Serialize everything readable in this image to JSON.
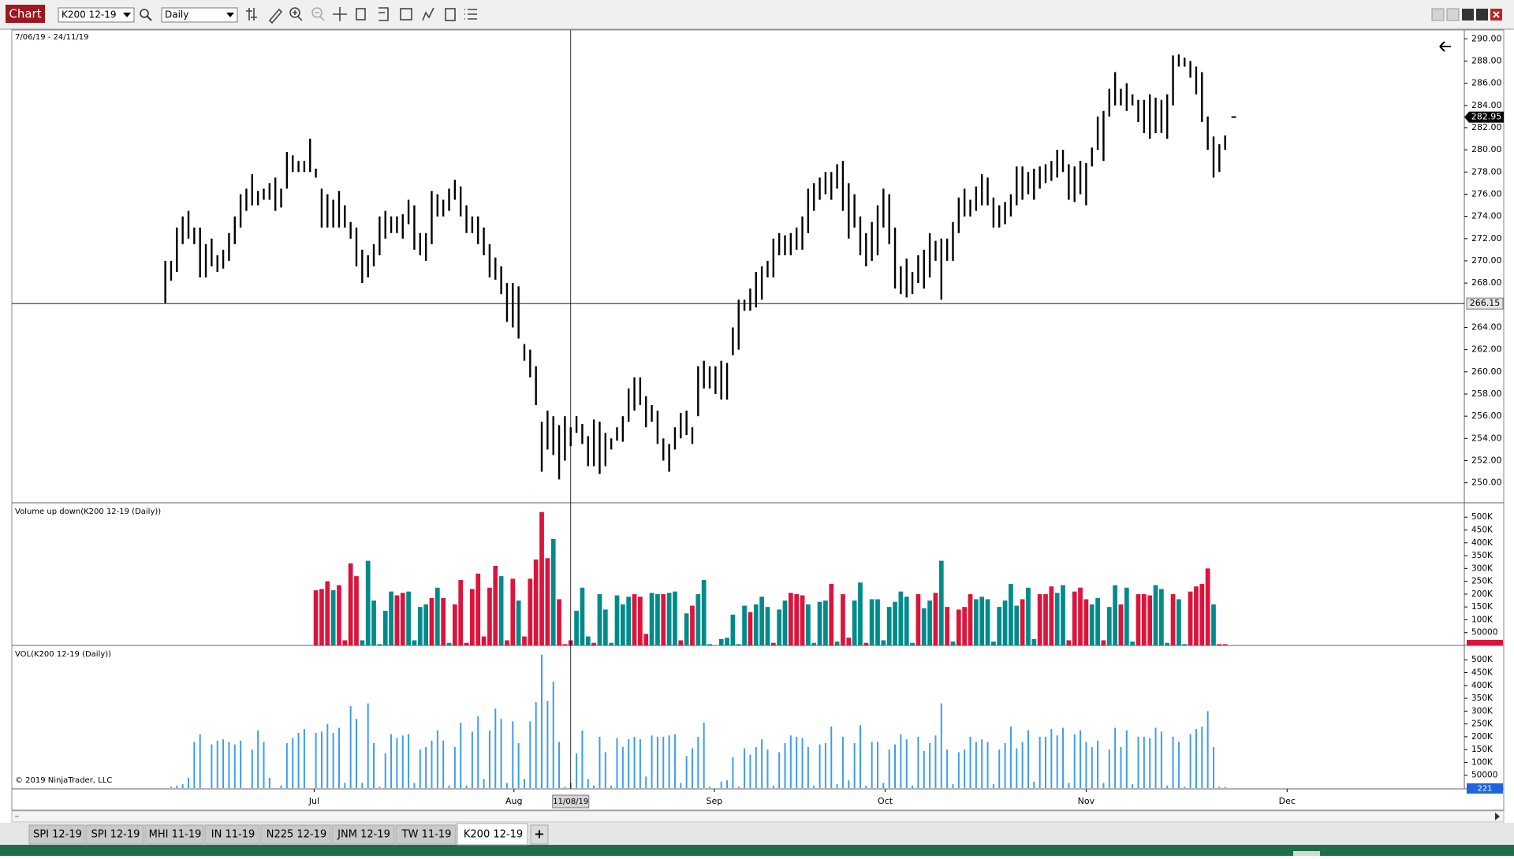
{
  "toolbar": {
    "label": "Chart",
    "instrument": "K200 12-19",
    "interval": "Daily"
  },
  "tabs": [
    "SPI 12-19",
    "SPI 12-19",
    "MHI 11-19",
    "IN 11-19",
    "N225 12-19",
    "JNM 12-19",
    "TW 11-19",
    "K200 12-19"
  ],
  "new_tab": "+",
  "chart_data": {
    "type": "ohlc",
    "range_label": "7/06/19 - 24/11/19",
    "copyright": "© 2019 NinjaTrader, LLC",
    "color": "#000000",
    "high": [
      270,
      270,
      273,
      274,
      274.5,
      273,
      273,
      271.5,
      272,
      270.5,
      271,
      272.5,
      274,
      276,
      276.5,
      277.8,
      276.3,
      276.5,
      277,
      277.5,
      276.5,
      279.8,
      279.5,
      279,
      279,
      281,
      278.3,
      276.5,
      276,
      275.5,
      276.3,
      275,
      273.5,
      273,
      271,
      270.5,
      271.5,
      274,
      274.5,
      274,
      274,
      274.2,
      275.5,
      275,
      272.5,
      272.5,
      276.3,
      276,
      275.5,
      276.5,
      277.3,
      276.7,
      275,
      274,
      274,
      273,
      271.5,
      270.3,
      269.5,
      268,
      268,
      267.7,
      262.5,
      262,
      260.5,
      255.5,
      256.5,
      256,
      255.2,
      256,
      255,
      256,
      255.3,
      254.2,
      255.7,
      255.5,
      254.5,
      254,
      255,
      256,
      258.5,
      259.5,
      259.5,
      257.8,
      257,
      256.5,
      254,
      253.5,
      255,
      256.3,
      256.5,
      255,
      260.5,
      261,
      260.5,
      260.5,
      261,
      260.8,
      264,
      266.5,
      266.5,
      267.5,
      269,
      269.5,
      270,
      272,
      272.5,
      272.3,
      272.5,
      273,
      274,
      276.5,
      277,
      277.5,
      278,
      278,
      278.7,
      279,
      277,
      276,
      274,
      272.5,
      273.5,
      275,
      276.5,
      276,
      273,
      269.5,
      270.2,
      269,
      270.5,
      271,
      272.5,
      271.8,
      272,
      272,
      273.5,
      275.7,
      276.5,
      275.5,
      276.7,
      277.8,
      277.5,
      275.7,
      275,
      275.3,
      276,
      278.5,
      278.5,
      278,
      278.3,
      278.5,
      278.7,
      279,
      280,
      280,
      278.7,
      278.5,
      279,
      278.8,
      280.2,
      283,
      283.5,
      285.5,
      287,
      285.5,
      286,
      285,
      284.5,
      284.5,
      285,
      284.7,
      284.5,
      285,
      288.5,
      288.6,
      288.3,
      288,
      287.5,
      287,
      283,
      281.2,
      280.5,
      281.3
    ],
    "low": [
      266.2,
      268.2,
      269,
      271.5,
      272,
      271.5,
      268.5,
      268.5,
      269.5,
      269,
      269.3,
      270,
      271.5,
      273,
      274.5,
      275,
      275,
      275.5,
      275.5,
      274.5,
      274.8,
      276.5,
      278,
      278,
      278,
      278,
      277.5,
      273,
      273,
      273,
      273,
      273,
      272,
      269.5,
      268,
      268.5,
      269.5,
      270.5,
      272,
      272.5,
      272.5,
      272,
      273.3,
      271,
      270.5,
      270,
      271.5,
      274,
      274,
      274.5,
      275.5,
      274,
      272.5,
      272.5,
      271.5,
      270.5,
      268.5,
      268.3,
      267,
      264.5,
      264,
      263,
      261,
      259.5,
      257,
      251,
      253,
      252.5,
      250.3,
      252,
      253.3,
      254.5,
      253.5,
      251.5,
      251.5,
      250.8,
      251.5,
      253,
      253.8,
      253.7,
      255.5,
      256.5,
      257,
      255,
      255.5,
      253.5,
      252,
      251,
      253,
      254,
      254.3,
      253.5,
      256,
      258.5,
      258.5,
      258,
      257.5,
      257.5,
      261.5,
      262,
      265.5,
      265.5,
      265.8,
      266.5,
      268.5,
      268.5,
      270.5,
      270.5,
      270.5,
      271,
      271,
      272.5,
      274.5,
      275.5,
      276,
      275.5,
      276.5,
      274.5,
      272,
      273,
      270.5,
      269.5,
      270,
      270.5,
      273,
      271.5,
      267.5,
      267,
      266.7,
      267,
      268,
      267.5,
      268.5,
      270,
      266.5,
      270,
      270,
      272.5,
      274,
      274,
      274.5,
      275,
      275,
      273,
      273,
      273.3,
      274,
      275,
      275.5,
      276,
      275.5,
      276.5,
      277,
      277.2,
      277.5,
      278,
      275.5,
      275.3,
      276,
      275,
      278.5,
      280,
      279,
      283,
      284,
      284,
      283.5,
      284,
      282.5,
      281.5,
      281,
      281.5,
      281.5,
      281,
      284,
      287.5,
      287.5,
      286.5,
      285,
      282.5,
      280,
      277.5,
      278,
      280
    ],
    "ylim": [
      248.2,
      290.8
    ],
    "yticks": [
      {
        "value": 290,
        "label": "290.00"
      },
      {
        "value": 288,
        "label": "288.00"
      },
      {
        "value": 286,
        "label": "286.00"
      },
      {
        "value": 284,
        "label": "284.00"
      },
      {
        "value": 282,
        "label": "282.00"
      },
      {
        "value": 280,
        "label": "280.00"
      },
      {
        "value": 278,
        "label": "278.00"
      },
      {
        "value": 276,
        "label": "276.00"
      },
      {
        "value": 274,
        "label": "274.00"
      },
      {
        "value": 272,
        "label": "272.00"
      },
      {
        "value": 270,
        "label": "270.00"
      },
      {
        "value": 268,
        "label": "268.00"
      },
      {
        "value": 264,
        "label": "264.00"
      },
      {
        "value": 262,
        "label": "262.00"
      },
      {
        "value": 260,
        "label": "260.00"
      },
      {
        "value": 258,
        "label": "258.00"
      },
      {
        "value": 256,
        "label": "256.00"
      },
      {
        "value": 254,
        "label": "254.00"
      },
      {
        "value": 252,
        "label": "252.00"
      },
      {
        "value": 250,
        "label": "250.00"
      }
    ],
    "xlim": [
      -26.5,
      224.3
    ],
    "xticks": [
      {
        "value": 25.7,
        "label": "Jul"
      },
      {
        "value": 60.2,
        "label": "Aug"
      },
      {
        "value": 94.8,
        "label": "Sep"
      },
      {
        "value": 124.3,
        "label": "Oct"
      },
      {
        "value": 159,
        "label": "Nov"
      },
      {
        "value": 193.7,
        "label": "Dec"
      }
    ],
    "crosshair": {
      "x": 70,
      "x_label": "11/08/19",
      "y": 266.15
    },
    "last_price": 282.95,
    "volume": {
      "title": "Volume up down(K200 12-19 (Daily))",
      "title2": "VOL(K200 12-19 (Daily))",
      "line_color": "#3d9df2",
      "last_label": "221",
      "values": [
        0,
        5000,
        10000,
        15000,
        40000,
        180000,
        210000,
        0,
        170000,
        185000,
        190000,
        180000,
        170000,
        185000,
        0,
        150000,
        225000,
        180000,
        40000,
        0,
        10000,
        175000,
        195000,
        215000,
        230000,
        0,
        215000,
        220000,
        250000,
        215000,
        235000,
        20000,
        320000,
        270000,
        20000,
        330000,
        175000,
        5000,
        135000,
        210000,
        195000,
        205000,
        210000,
        20000,
        150000,
        160000,
        185000,
        225000,
        185000,
        10000,
        160000,
        255000,
        10000,
        220000,
        280000,
        35000,
        225000,
        310000,
        270000,
        20000,
        260000,
        175000,
        35000,
        260000,
        335000,
        520000,
        340000,
        415000,
        180000,
        5000,
        20000,
        135000,
        225000,
        35000,
        10000,
        200000,
        140000,
        10000,
        195000,
        160000,
        190000,
        200000,
        190000,
        45000,
        205000,
        200000,
        200000,
        205000,
        210000,
        20000,
        125000,
        155000,
        200000,
        255000,
        5000,
        0,
        25000,
        30000,
        120000,
        5000,
        155000,
        130000,
        160000,
        190000,
        150000,
        10000,
        140000,
        175000,
        205000,
        200000,
        195000,
        160000,
        10000,
        170000,
        175000,
        240000,
        15000,
        200000,
        30000,
        175000,
        245000,
        10000,
        180000,
        180000,
        20000,
        150000,
        170000,
        210000,
        190000,
        10000,
        200000,
        145000,
        175000,
        205000,
        330000,
        150000,
        15000,
        140000,
        150000,
        200000,
        180000,
        190000,
        180000,
        15000,
        150000,
        175000,
        240000,
        155000,
        180000,
        225000,
        25000,
        200000,
        200000,
        230000,
        205000,
        235000,
        20000,
        210000,
        225000,
        180000,
        160000,
        185000,
        20000,
        150000,
        235000,
        160000,
        225000,
        15000,
        200000,
        200000,
        195000,
        235000,
        220000,
        10000,
        200000,
        180000,
        5000,
        210000,
        230000,
        240000,
        300000,
        160000,
        5000,
        5000
      ],
      "colors": [
        null,
        null,
        null,
        null,
        null,
        null,
        null,
        null,
        null,
        null,
        null,
        null,
        null,
        null,
        null,
        null,
        null,
        null,
        null,
        null,
        null,
        null,
        null,
        null,
        null,
        null,
        "#dc143c",
        "#dc143c",
        "#dc143c",
        "#008b8b",
        "#dc143c",
        "#dc143c",
        "#dc143c",
        "#dc143c",
        "#008b8b",
        "#008b8b",
        "#008b8b",
        "#008b8b",
        "#008b8b",
        "#008b8b",
        "#dc143c",
        "#dc143c",
        "#008b8b",
        "#008b8b",
        "#008b8b",
        "#008b8b",
        "#dc143c",
        "#008b8b",
        "#dc143c",
        "#008b8b",
        "#dc143c",
        "#dc143c",
        "#dc143c",
        "#dc143c",
        "#dc143c",
        "#dc143c",
        "#dc143c",
        "#dc143c",
        "#008b8b",
        "#dc143c",
        "#dc143c",
        "#008b8b",
        "#dc143c",
        "#dc143c",
        "#dc143c",
        "#dc143c",
        "#dc143c",
        "#008b8b",
        "#dc143c",
        "#dc143c",
        "#dc143c",
        "#008b8b",
        "#008b8b",
        "#008b8b",
        "#dc143c",
        "#008b8b",
        "#008b8b",
        "#008b8b",
        "#008b8b",
        "#008b8b",
        "#008b8b",
        "#dc143c",
        "#dc143c",
        "#dc143c",
        "#008b8b",
        "#008b8b",
        "#dc143c",
        "#008b8b",
        "#008b8b",
        "#dc143c",
        "#008b8b",
        "#dc143c",
        "#008b8b",
        "#008b8b",
        "#008b8b",
        "#008b8b",
        "#008b8b",
        "#008b8b",
        "#008b8b",
        "#008b8b",
        "#008b8b",
        "#dc143c",
        "#008b8b",
        "#008b8b",
        "#008b8b",
        "#dc143c",
        "#008b8b",
        "#008b8b",
        "#dc143c",
        "#dc143c",
        "#dc143c",
        "#008b8b",
        "#008b8b",
        "#008b8b",
        "#008b8b",
        "#dc143c",
        "#008b8b",
        "#dc143c",
        "#dc143c",
        "#008b8b",
        "#008b8b",
        "#dc143c",
        "#008b8b",
        "#008b8b",
        "#008b8b",
        "#008b8b",
        "#008b8b",
        "#008b8b",
        "#008b8b",
        "#008b8b",
        "#dc143c",
        "#008b8b",
        "#008b8b",
        "#dc143c",
        "#008b8b",
        "#dc143c",
        "#008b8b",
        "#dc143c",
        "#dc143c",
        "#dc143c",
        "#008b8b",
        "#008b8b",
        "#008b8b",
        "#008b8b",
        "#008b8b",
        "#008b8b",
        "#008b8b",
        "#008b8b",
        "#dc143c",
        "#008b8b",
        "#008b8b",
        "#dc143c",
        "#dc143c",
        "#dc143c",
        "#008b8b",
        "#008b8b",
        "#dc143c",
        "#dc143c",
        "#dc143c",
        "#dc143c",
        "#008b8b",
        "#008b8b",
        "#dc143c",
        "#008b8b",
        "#008b8b",
        "#dc143c",
        "#008b8b",
        "#008b8b",
        "#dc143c",
        "#dc143c",
        "#dc143c",
        "#008b8b",
        "#008b8b",
        "#008b8b",
        "#dc143c",
        "#008b8b",
        "#008b8b",
        "#dc143c",
        "#dc143c",
        "#dc143c",
        "#dc143c",
        "#008b8b",
        "#dc143c",
        "#dc143c"
      ],
      "ylim": [
        0,
        556000
      ],
      "yticks": [
        {
          "value": 500000,
          "label": "500K"
        },
        {
          "value": 450000,
          "label": "450K"
        },
        {
          "value": 400000,
          "label": "400K"
        },
        {
          "value": 350000,
          "label": "350K"
        },
        {
          "value": 300000,
          "label": "300K"
        },
        {
          "value": 250000,
          "label": "250K"
        },
        {
          "value": 200000,
          "label": "200K"
        },
        {
          "value": 150000,
          "label": "150K"
        },
        {
          "value": 100000,
          "label": "100K"
        },
        50000
      ]
    }
  }
}
